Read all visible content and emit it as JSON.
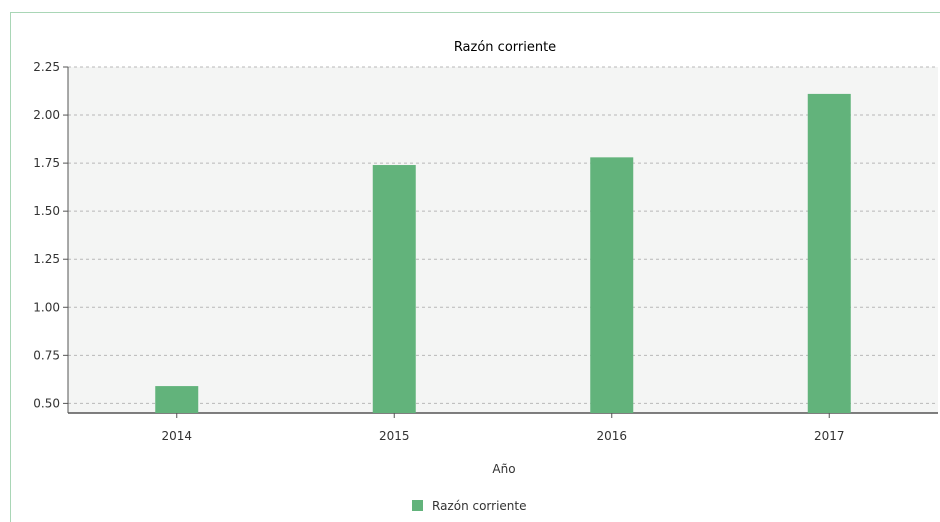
{
  "chart_data": {
    "type": "bar",
    "title": "Razón corriente",
    "xlabel": "Año",
    "ylabel": "",
    "categories": [
      "2014",
      "2015",
      "2016",
      "2017"
    ],
    "series": [
      {
        "name": "Razón corriente",
        "values": [
          0.59,
          1.74,
          1.78,
          2.11
        ]
      }
    ],
    "ylim": [
      0.45,
      2.25
    ],
    "yticks": [
      "0.50",
      "0.75",
      "1.00",
      "1.25",
      "1.50",
      "1.75",
      "2.00",
      "2.25"
    ],
    "grid": true,
    "legend_position": "bottom",
    "colors": {
      "bar": "#62b37b",
      "plot_background": "#f4f5f4",
      "grid": "#b8b8b8",
      "frame": "#a9d6b6"
    }
  }
}
